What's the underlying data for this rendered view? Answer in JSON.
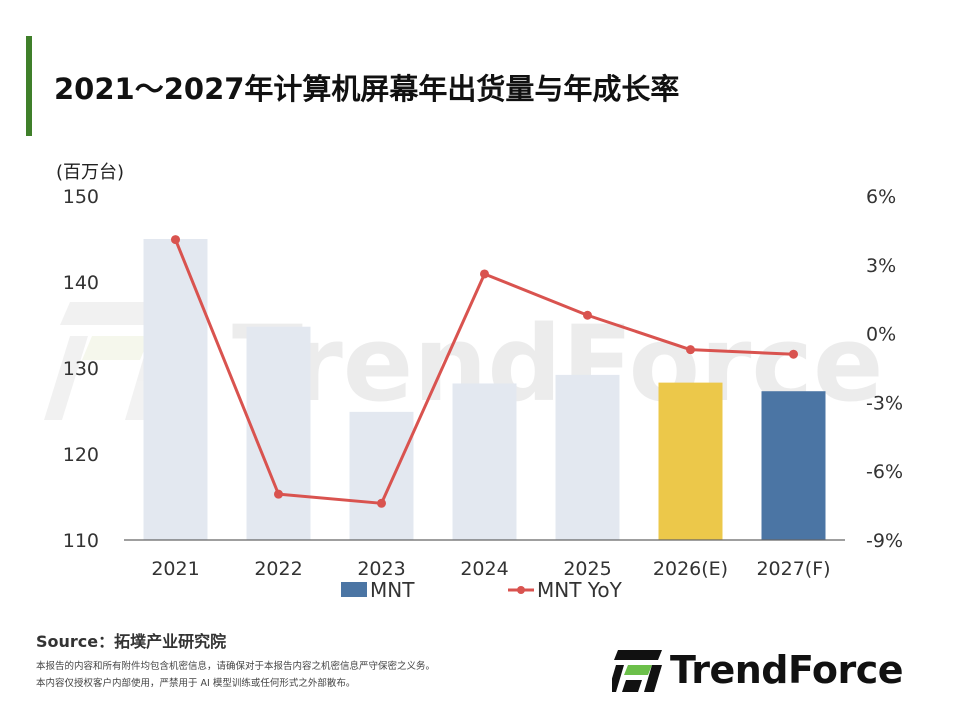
{
  "page": {
    "title": "2021～2027年计算机屏幕年出货量与年成长率",
    "accent_color": "#3f7f2a"
  },
  "chart_data": {
    "type": "bar",
    "categories": [
      "2021",
      "2022",
      "2023",
      "2024",
      "2025",
      "2026(E)",
      "2027(F)"
    ],
    "series": [
      {
        "name": "MNT",
        "type": "bar",
        "axis": "left",
        "values": [
          145.0,
          134.8,
          124.9,
          128.2,
          129.2,
          128.3,
          127.3
        ],
        "colors": [
          "#e3e8f0",
          "#e3e8f0",
          "#e3e8f0",
          "#e3e8f0",
          "#e3e8f0",
          "#ecc84a",
          "#4b75a4"
        ]
      },
      {
        "name": "MNT YoY",
        "type": "line",
        "axis": "right",
        "values": [
          4.1,
          -7.0,
          -7.4,
          2.6,
          0.8,
          -0.7,
          -0.9
        ],
        "color": "#d9534f"
      }
    ],
    "y_left": {
      "unit": "(百万台)",
      "min": 110,
      "max": 150,
      "ticks": [
        "110",
        "120",
        "130",
        "140",
        "150"
      ]
    },
    "y_right": {
      "min": -9,
      "max": 6,
      "ticks": [
        "-9%",
        "-6%",
        "-3%",
        "0%",
        "3%",
        "6%"
      ]
    },
    "legend": {
      "position": "bottom",
      "items": [
        {
          "label": "MNT",
          "color": "#4b75a4",
          "marker": "bar"
        },
        {
          "label": "MNT YoY",
          "color": "#d9534f",
          "marker": "line"
        }
      ]
    },
    "grid": false,
    "watermark": "TrendForce"
  },
  "footer": {
    "source": "Source：拓墣产业研究院",
    "disclaimer_1": "本报告的内容和所有附件均包含机密信息，请确保对于本报告内容之机密信息严守保密之义务。",
    "disclaimer_2": "本内容仅授权客户内部使用，严禁用于 AI 模型训练或任何形式之外部散布。",
    "logo_text": "TrendForce"
  }
}
